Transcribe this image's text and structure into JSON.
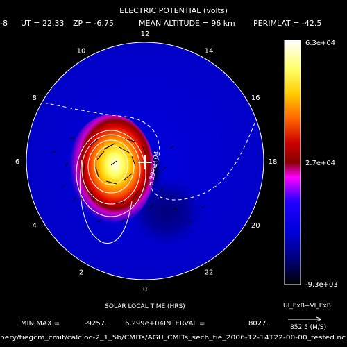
{
  "title": "ELECTRIC POTENTIAL (volts)",
  "header": {
    "prefix": "-8",
    "ut": "UT = 22.33",
    "zp": "ZP =   -6.75",
    "mean_altitude": "MEAN ALTITUDE =   96 km",
    "perimlat": "PERIMLAT = -42.5"
  },
  "clock_labels": [
    "12",
    "14",
    "16",
    "18",
    "20",
    "22",
    "0",
    "2",
    "4",
    "6",
    "8",
    "10"
  ],
  "colorbar": {
    "max_label": "6.3e+04",
    "mid_label": "2.7e+04",
    "min_label": "-9.3e+03",
    "colors": [
      "#ffffff",
      "#ffff66",
      "#ffcc00",
      "#ff6600",
      "#cc0000",
      "#7a0000",
      "#ff00ff",
      "#0000ff",
      "#000066",
      "#000000"
    ]
  },
  "axis_label": "SOLAR LOCAL TIME (HRS)",
  "vector_legend": {
    "label": "UI_ExB+VI_ExB",
    "value": "852.5 (M/S)"
  },
  "stats": {
    "minmax_label": "MIN,MAX =",
    "min": "-9257.",
    "max": "6.299e+04",
    "interval_label": "INTERVAL =",
    "interval": "8027."
  },
  "contour_annotation": "6.299e+04",
  "file_path": "nery/tiegcm_cmit/calcloc-2_1_5b/CMITs/AGU_CMITs_sech_tie_2006-12-14T22-00-00_tested.nc"
}
